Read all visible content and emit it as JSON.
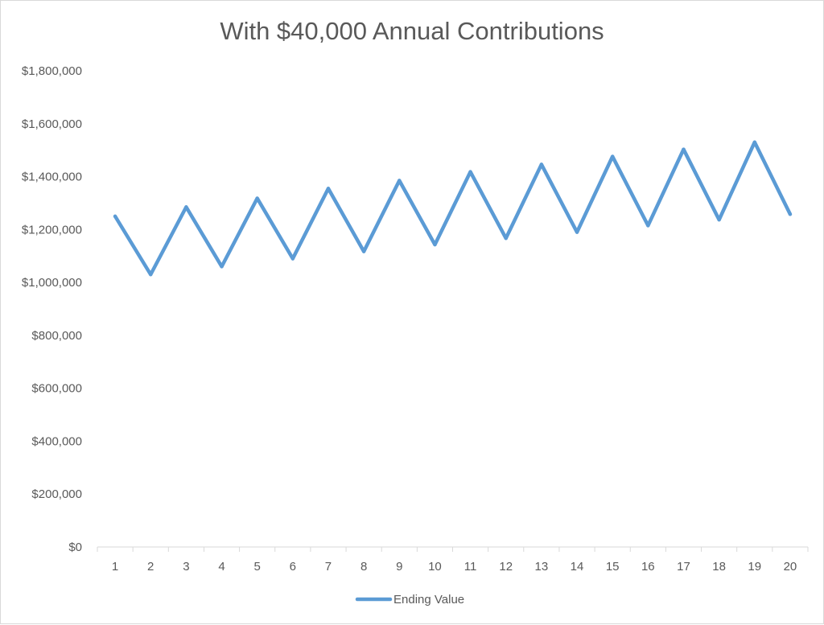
{
  "chart_data": {
    "type": "line",
    "title": "With $40,000 Annual Contributions",
    "xlabel": "",
    "ylabel": "",
    "x": [
      1,
      2,
      3,
      4,
      5,
      6,
      7,
      8,
      9,
      10,
      11,
      12,
      13,
      14,
      15,
      16,
      17,
      18,
      19,
      20
    ],
    "ylim": [
      0,
      1800000
    ],
    "yticks": [
      0,
      200000,
      400000,
      600000,
      800000,
      1000000,
      1200000,
      1400000,
      1600000,
      1800000
    ],
    "ytick_labels": [
      "$0",
      "$200,000",
      "$400,000",
      "$600,000",
      "$800,000",
      "$1,000,000",
      "$1,200,000",
      "$1,400,000",
      "$1,600,000",
      "$1,800,000"
    ],
    "grid": false,
    "legend_position": "bottom",
    "series": [
      {
        "name": "Ending Value",
        "color": "#5b9bd5",
        "values": [
          1250000,
          1030000,
          1285000,
          1060000,
          1318000,
          1090000,
          1355000,
          1117000,
          1385000,
          1143000,
          1418000,
          1167000,
          1446000,
          1190000,
          1476000,
          1215000,
          1503000,
          1237000,
          1530000,
          1258000
        ]
      }
    ]
  }
}
